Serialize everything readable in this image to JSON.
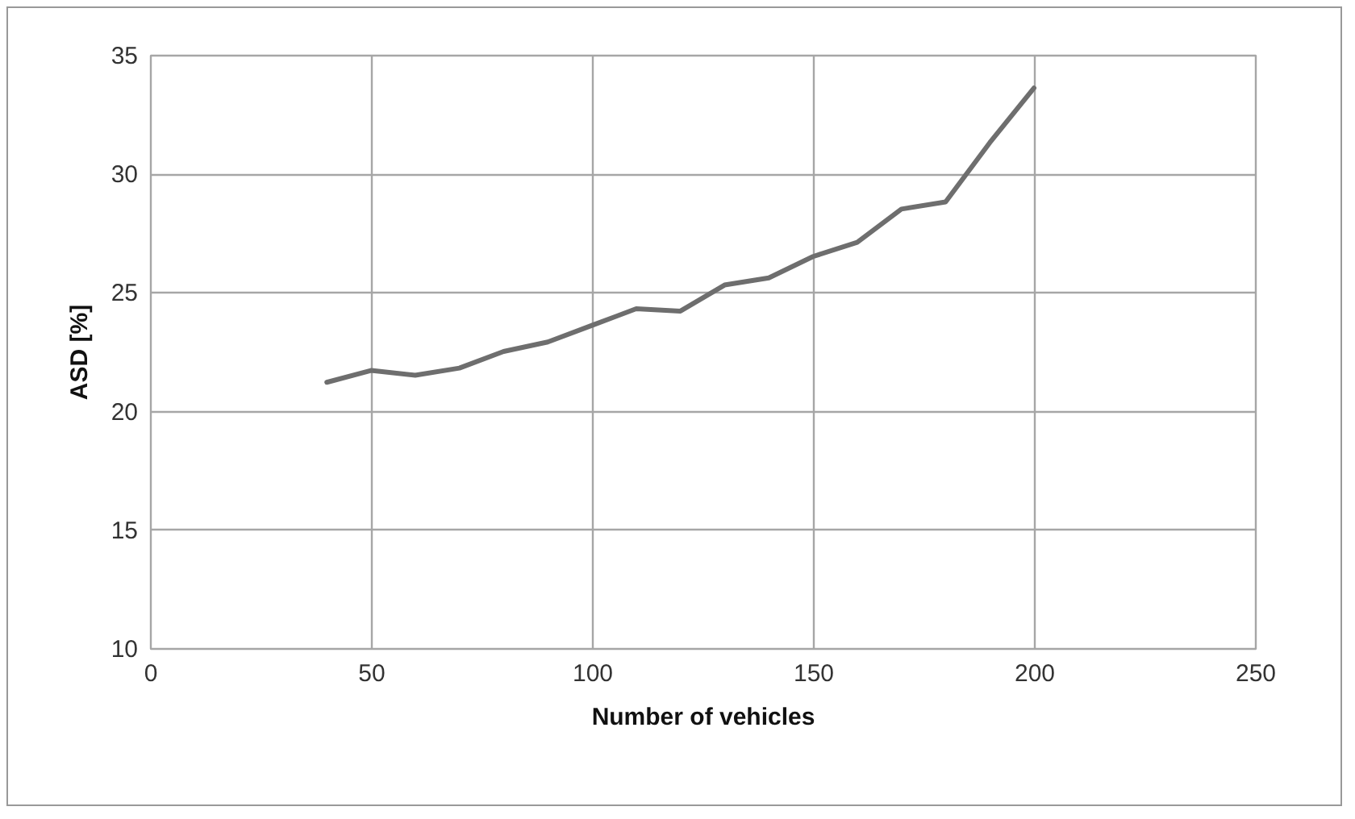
{
  "chart_data": {
    "type": "line",
    "xlabel": "Number of vehicles",
    "ylabel": "ASD [%]",
    "x": [
      40,
      50,
      60,
      70,
      80,
      90,
      100,
      110,
      120,
      130,
      140,
      150,
      160,
      170,
      180,
      190,
      200
    ],
    "series": [
      {
        "color": "#6e6e6e",
        "values": [
          21.2,
          21.7,
          21.5,
          21.8,
          22.5,
          22.9,
          23.6,
          24.3,
          24.2,
          25.3,
          25.6,
          26.5,
          27.1,
          28.5,
          28.8,
          31.3,
          33.6
        ]
      }
    ],
    "xlim": [
      0,
      250
    ],
    "xticks": [
      0,
      50,
      100,
      150,
      200,
      250
    ],
    "ylim": [
      10,
      35
    ],
    "yticks": [
      10,
      15,
      20,
      25,
      30,
      35
    ],
    "grid": true,
    "marker": "none",
    "line_style": "solid"
  }
}
